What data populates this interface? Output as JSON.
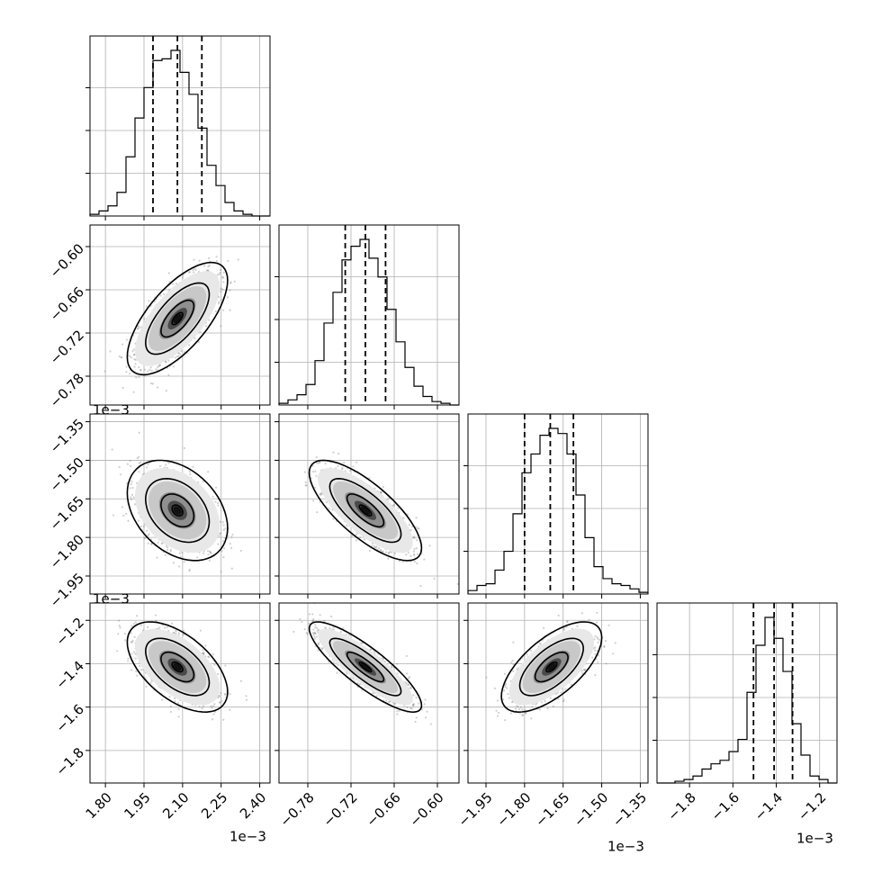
{
  "chart_data": {
    "type": "corner",
    "grid": true,
    "parameters": [
      {
        "x_ticks": [
          1.8,
          1.95,
          2.1,
          2.25,
          2.4
        ],
        "x_tick_labels": [
          "1.80",
          "1.95",
          "2.10",
          "2.25",
          "2.40"
        ],
        "range": [
          1.74,
          2.44
        ],
        "offset": "1e−3",
        "mean": 2.08,
        "std": 0.075,
        "quantiles": [
          1.985,
          2.08,
          2.175
        ],
        "hist_bins": [
          1.74,
          1.775,
          1.81,
          1.845,
          1.88,
          1.915,
          1.95,
          1.985,
          2.02,
          2.055,
          2.09,
          2.125,
          2.16,
          2.195,
          2.23,
          2.265,
          2.3,
          2.335,
          2.37,
          2.405,
          2.44
        ],
        "hist_counts": [
          0.01,
          0.03,
          0.06,
          0.14,
          0.35,
          0.58,
          0.76,
          0.92,
          0.93,
          0.98,
          0.85,
          0.72,
          0.52,
          0.3,
          0.18,
          0.08,
          0.03,
          0.01,
          0.0,
          0.0
        ]
      },
      {
        "x_ticks": [
          -0.78,
          -0.72,
          -0.66,
          -0.6
        ],
        "x_tick_labels": [
          "−0.78",
          "−0.72",
          "−0.66",
          "−0.60"
        ],
        "y_ticks": [
          -0.78,
          -0.72,
          -0.66,
          -0.6
        ],
        "y_tick_labels": [
          "−0.78",
          "−0.72",
          "−0.66",
          "−0.60"
        ],
        "range": [
          -0.82,
          -0.57
        ],
        "offset": "1e−3",
        "mean": -0.7,
        "std": 0.03,
        "quantiles": [
          -0.728,
          -0.7,
          -0.672
        ],
        "hist_bins": [
          -0.82,
          -0.8075,
          -0.795,
          -0.7825,
          -0.77,
          -0.7575,
          -0.745,
          -0.7325,
          -0.72,
          -0.7075,
          -0.695,
          -0.6825,
          -0.67,
          -0.6575,
          -0.645,
          -0.6325,
          -0.62,
          -0.6075,
          -0.595,
          -0.5825,
          -0.57
        ],
        "hist_counts": [
          0.01,
          0.03,
          0.06,
          0.12,
          0.26,
          0.48,
          0.66,
          0.85,
          0.93,
          0.97,
          0.86,
          0.75,
          0.56,
          0.37,
          0.22,
          0.11,
          0.05,
          0.02,
          0.01,
          0.0
        ]
      },
      {
        "x_ticks": [
          -1.95,
          -1.8,
          -1.65,
          -1.5,
          -1.35
        ],
        "x_tick_labels": [
          "−1.95",
          "−1.80",
          "−1.65",
          "−1.50",
          "−1.35"
        ],
        "y_ticks": [
          -1.95,
          -1.8,
          -1.65,
          -1.5,
          -1.35
        ],
        "y_tick_labels": [
          "−1.95",
          "−1.80",
          "−1.65",
          "−1.50",
          "−1.35"
        ],
        "range": [
          -2.02,
          -1.32
        ],
        "offset": "1e−3",
        "mean": -1.695,
        "std": 0.075,
        "quantiles": [
          -1.8,
          -1.7,
          -1.61
        ],
        "hist_bins": [
          -2.02,
          -1.985,
          -1.95,
          -1.915,
          -1.88,
          -1.845,
          -1.81,
          -1.775,
          -1.74,
          -1.705,
          -1.67,
          -1.635,
          -1.6,
          -1.565,
          -1.53,
          -1.495,
          -1.46,
          -1.425,
          -1.39,
          -1.355,
          -1.32
        ],
        "hist_counts": [
          0.02,
          0.05,
          0.06,
          0.14,
          0.25,
          0.47,
          0.71,
          0.82,
          0.93,
          0.97,
          0.94,
          0.82,
          0.58,
          0.33,
          0.16,
          0.09,
          0.06,
          0.05,
          0.03,
          0.01
        ]
      },
      {
        "x_ticks": [
          -1.8,
          -1.6,
          -1.4,
          -1.2
        ],
        "x_tick_labels": [
          "−1.8",
          "−1.6",
          "−1.4",
          "−1.2"
        ],
        "y_ticks": [
          -1.8,
          -1.6,
          -1.4,
          -1.2
        ],
        "y_tick_labels": [
          "−1.8",
          "−1.6",
          "−1.4",
          "−1.2"
        ],
        "range": [
          -1.95,
          -1.12
        ],
        "offset": "1e−3",
        "mean": -1.415,
        "std": 0.08,
        "quantiles": [
          -1.505,
          -1.41,
          -1.325
        ],
        "hist_bins": [
          -1.95,
          -1.9085,
          -1.867,
          -1.8255,
          -1.784,
          -1.7425,
          -1.701,
          -1.6595,
          -1.618,
          -1.5765,
          -1.535,
          -1.4935,
          -1.452,
          -1.4105,
          -1.369,
          -1.3275,
          -1.286,
          -1.2445,
          -1.203,
          -1.1615,
          -1.12
        ],
        "hist_counts": [
          0.0,
          0.0,
          0.01,
          0.02,
          0.04,
          0.08,
          0.11,
          0.13,
          0.18,
          0.25,
          0.52,
          0.79,
          0.95,
          0.83,
          0.64,
          0.34,
          0.16,
          0.04,
          0.02,
          0.0
        ]
      }
    ],
    "pairs": [
      {
        "row": 1,
        "col": 0,
        "rho": 0.68
      },
      {
        "row": 2,
        "col": 0,
        "rho": -0.35
      },
      {
        "row": 2,
        "col": 1,
        "rho": -0.75
      },
      {
        "row": 3,
        "col": 0,
        "rho": -0.55
      },
      {
        "row": 3,
        "col": 1,
        "rho": -0.85
      },
      {
        "row": 3,
        "col": 2,
        "rho": 0.65
      }
    ]
  }
}
